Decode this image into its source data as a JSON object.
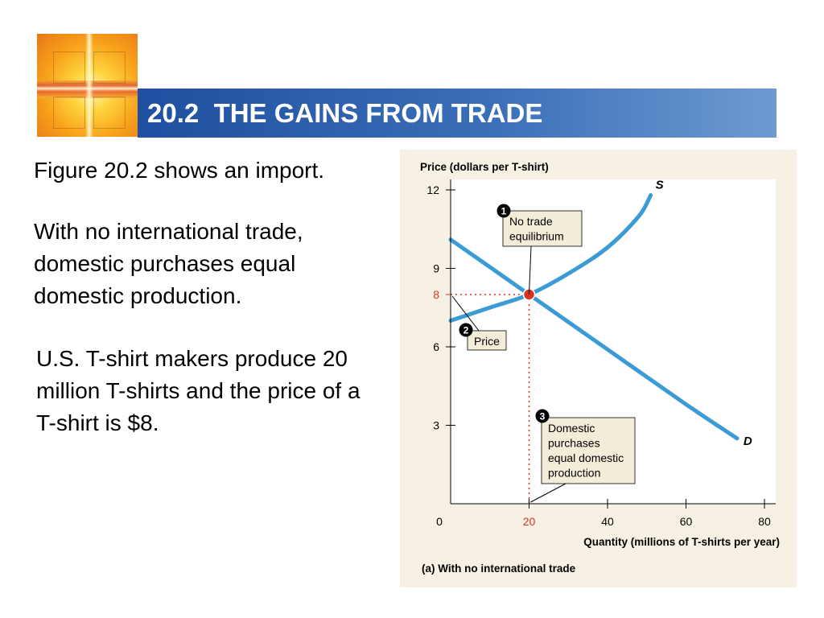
{
  "slide": {
    "title": "20.2  THE GAINS FROM TRADE",
    "paragraphs": [
      "Figure 20.2 shows an import.",
      "With no international trade, domestic purchases equal domestic production.",
      "U.S. T-shirt makers produce 20 million T-shirts and the price of a T-shirt is $8."
    ]
  },
  "chart_data": {
    "type": "line",
    "ylabel": "Price (dollars per T-shirt)",
    "xlabel": "Quantity (millions of T-shirts per year)",
    "caption": "(a) With no international trade",
    "xlim": [
      0,
      80
    ],
    "ylim": [
      0,
      12
    ],
    "x_ticks": [
      "0",
      "20",
      "40",
      "60",
      "80"
    ],
    "y_ticks": [
      "3",
      "6",
      "9",
      "12"
    ],
    "highlight": {
      "x": 20,
      "y": 8,
      "x_label": "20",
      "y_label": "8",
      "color": "#d9341f"
    },
    "series": [
      {
        "name": "S",
        "points": [
          [
            0,
            7
          ],
          [
            10,
            7.5
          ],
          [
            20,
            8
          ],
          [
            30,
            8.8
          ],
          [
            40,
            9.8
          ],
          [
            48,
            11.0
          ],
          [
            51,
            11.8
          ]
        ]
      },
      {
        "name": "D",
        "points": [
          [
            0,
            10.1
          ],
          [
            20,
            8
          ],
          [
            40,
            5.9
          ],
          [
            60,
            3.8
          ],
          [
            73,
            2.5
          ]
        ]
      }
    ],
    "annotations": [
      {
        "number": "1",
        "lines": [
          "No trade",
          "equilibrium"
        ]
      },
      {
        "number": "2",
        "lines": [
          "Price"
        ]
      },
      {
        "number": "3",
        "lines": [
          "Domestic",
          "purchases",
          "equal domestic",
          "production"
        ]
      }
    ],
    "curve_color": "#3a9bd5",
    "plot_background": "#ffffff",
    "panel_background": "#f6f1e4"
  }
}
